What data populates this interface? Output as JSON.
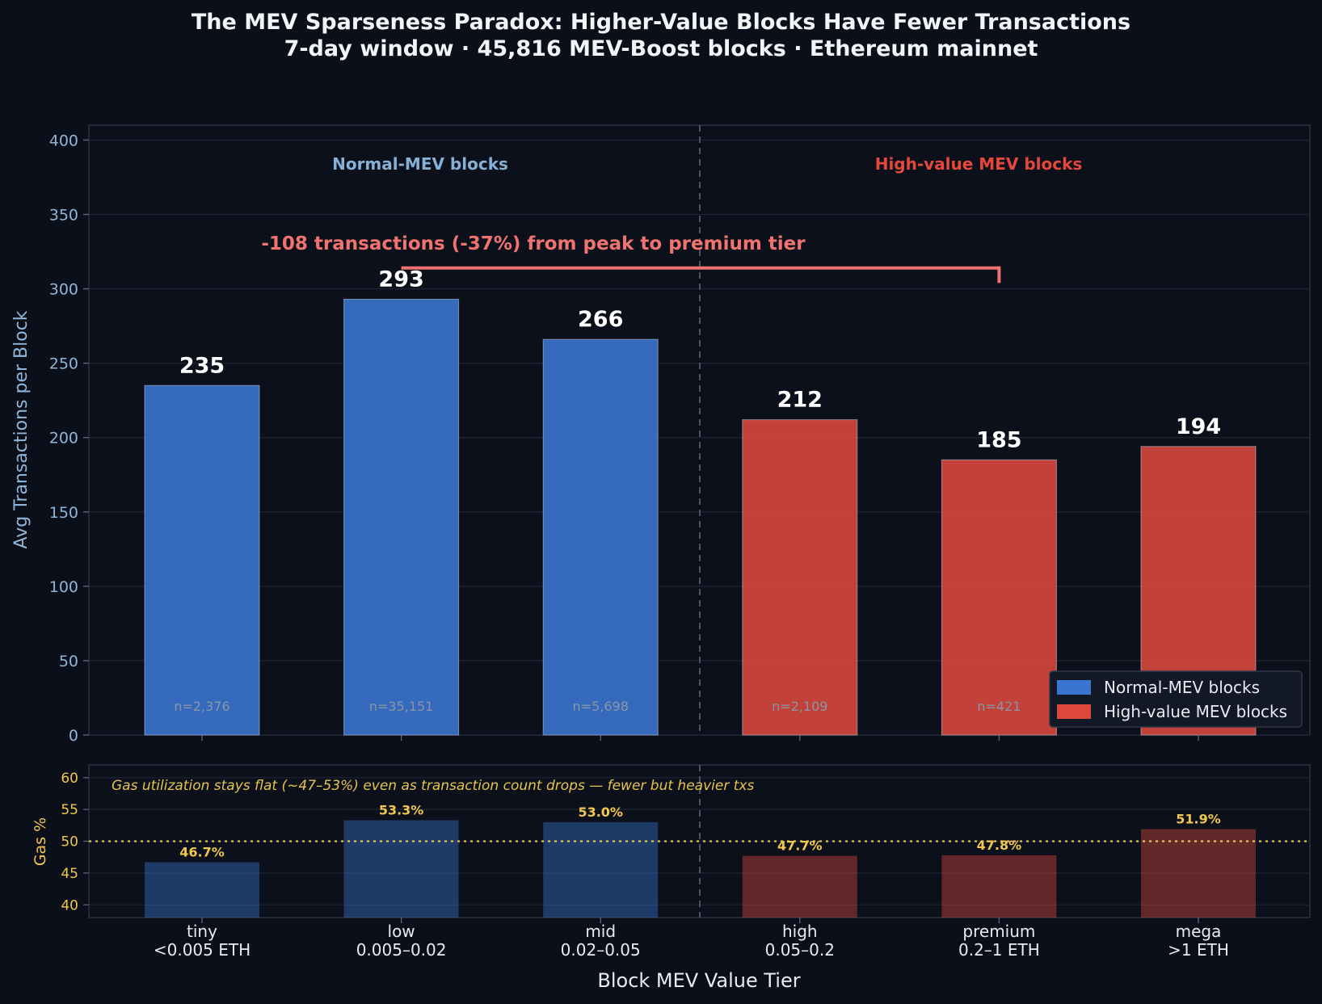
{
  "chart_data": {
    "type": "bar",
    "title": "The MEV Sparseness Paradox: Higher-Value Blocks Have Fewer Transactions",
    "subtitle": "7-day window · 45,816 MEV-Boost blocks · Ethereum mainnet",
    "xlabel": "Block MEV Value Tier",
    "categories": [
      {
        "name": "tiny",
        "range": "<0.005 ETH"
      },
      {
        "name": "low",
        "range": "0.005–0.02"
      },
      {
        "name": "mid",
        "range": "0.02–0.05"
      },
      {
        "name": "high",
        "range": "0.05–0.2"
      },
      {
        "name": "premium",
        "range": "0.2–1 ETH"
      },
      {
        "name": "mega",
        "range": ">1 ETH"
      }
    ],
    "groups": [
      "normal",
      "normal",
      "normal",
      "high",
      "high",
      "high"
    ],
    "colors": {
      "normal": "#3a75d2",
      "high": "#dc483c"
    },
    "top_panel": {
      "ylabel": "Avg Transactions per Block",
      "ylim": [
        0,
        410
      ],
      "yticks": [
        "0",
        "50",
        "100",
        "150",
        "200",
        "250",
        "300",
        "350",
        "400"
      ],
      "values": [
        235,
        293,
        266,
        212,
        185,
        194
      ],
      "value_labels": [
        "235",
        "293",
        "266",
        "212",
        "185",
        "194"
      ],
      "sample_labels": [
        "n=2,376",
        "n=35,151",
        "n=5,698",
        "n=2,109",
        "n=421",
        ""
      ],
      "region_labels": {
        "left": "Normal-MEV blocks",
        "right": "High-value MEV blocks"
      },
      "annotation": "-108 transactions (-37%) from peak to premium tier",
      "legend": {
        "position": "lower-right",
        "entries": [
          {
            "label": "Normal-MEV blocks",
            "group": "normal"
          },
          {
            "label": "High-value MEV blocks",
            "group": "high"
          }
        ]
      }
    },
    "bottom_panel": {
      "ylabel": "Gas %",
      "ylim": [
        38,
        62
      ],
      "yticks": [
        "40",
        "45",
        "50",
        "55",
        "60"
      ],
      "values": [
        46.7,
        53.3,
        53.0,
        47.7,
        47.8,
        51.9
      ],
      "value_labels": [
        "46.7%",
        "53.3%",
        "53.0%",
        "47.7%",
        "47.8%",
        "51.9%"
      ],
      "reference_line": 50,
      "note": "Gas utilization stays flat (~47–53%) even as transaction count drops — fewer but heavier txs"
    }
  }
}
